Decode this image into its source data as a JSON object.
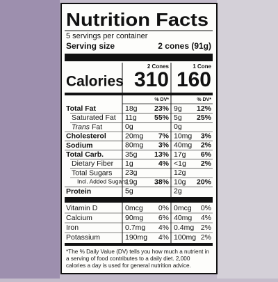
{
  "label": {
    "title": "Nutrition Facts",
    "servings": "5 servings per container",
    "serving_size": {
      "label": "Serving size",
      "value": "2 cones (91g)"
    },
    "calories_label": "Calories",
    "columns": [
      {
        "header": "2 Cones",
        "calories": "310",
        "dv_header": "% DV*"
      },
      {
        "header": "1 Cone",
        "calories": "160",
        "dv_header": "% DV*"
      }
    ],
    "nutrients": [
      {
        "label": "Total Fat",
        "bold": true,
        "indent": 0,
        "values": [
          [
            "18g",
            "23%"
          ],
          [
            "9g",
            "12%"
          ]
        ]
      },
      {
        "label": "Saturated Fat",
        "bold": false,
        "indent": 1,
        "values": [
          [
            "11g",
            "55%"
          ],
          [
            "5g",
            "25%"
          ]
        ]
      },
      {
        "label_italic": "Trans",
        "label": "Fat",
        "bold": false,
        "indent": 1,
        "values": [
          [
            "0g"
          ],
          [
            "0g"
          ]
        ]
      },
      {
        "label": "Cholesterol",
        "bold": true,
        "indent": 0,
        "values": [
          [
            "20mg",
            "7%"
          ],
          [
            "10mg",
            "3%"
          ]
        ]
      },
      {
        "label": "Sodium",
        "bold": true,
        "indent": 0,
        "values": [
          [
            "80mg",
            "3%"
          ],
          [
            "40mg",
            "2%"
          ]
        ]
      },
      {
        "label": "Total Carb.",
        "bold": true,
        "indent": 0,
        "values": [
          [
            "35g",
            "13%"
          ],
          [
            "17g",
            "6%"
          ]
        ]
      },
      {
        "label": "Dietary Fiber",
        "bold": false,
        "indent": 1,
        "values": [
          [
            "1g",
            "4%"
          ],
          [
            "<1g",
            "2%"
          ]
        ]
      },
      {
        "label": "Total Sugars",
        "bold": false,
        "indent": 1,
        "values": [
          [
            "23g"
          ],
          [
            "12g"
          ]
        ]
      },
      {
        "label": "Incl. Added Sugars",
        "bold": false,
        "indent": 2,
        "values": [
          [
            "19g",
            "38%"
          ],
          [
            "10g",
            "20%"
          ]
        ]
      },
      {
        "label": "Protein",
        "bold": true,
        "indent": 0,
        "values": [
          [
            "5g"
          ],
          [
            "2g"
          ]
        ]
      }
    ],
    "vitamins": [
      {
        "label": "Vitamin D",
        "values": [
          [
            "0mcg",
            "0%"
          ],
          [
            "0mcg",
            "0%"
          ]
        ]
      },
      {
        "label": "Calcium",
        "values": [
          [
            "90mg",
            "6%"
          ],
          [
            "40mg",
            "4%"
          ]
        ]
      },
      {
        "label": "Iron",
        "values": [
          [
            "0.7mg",
            "4%"
          ],
          [
            "0.4mg",
            "2%"
          ]
        ]
      },
      {
        "label": "Potassium",
        "values": [
          [
            "190mg",
            "4%"
          ],
          [
            "100mg",
            "2%"
          ]
        ]
      }
    ],
    "footnote": [
      "*The % Daily Value (DV) tells you how much a nutrient in",
      "a serving of food contributes to a daily diet. 2,000",
      "calories a day is used for general nutrition advice."
    ]
  }
}
